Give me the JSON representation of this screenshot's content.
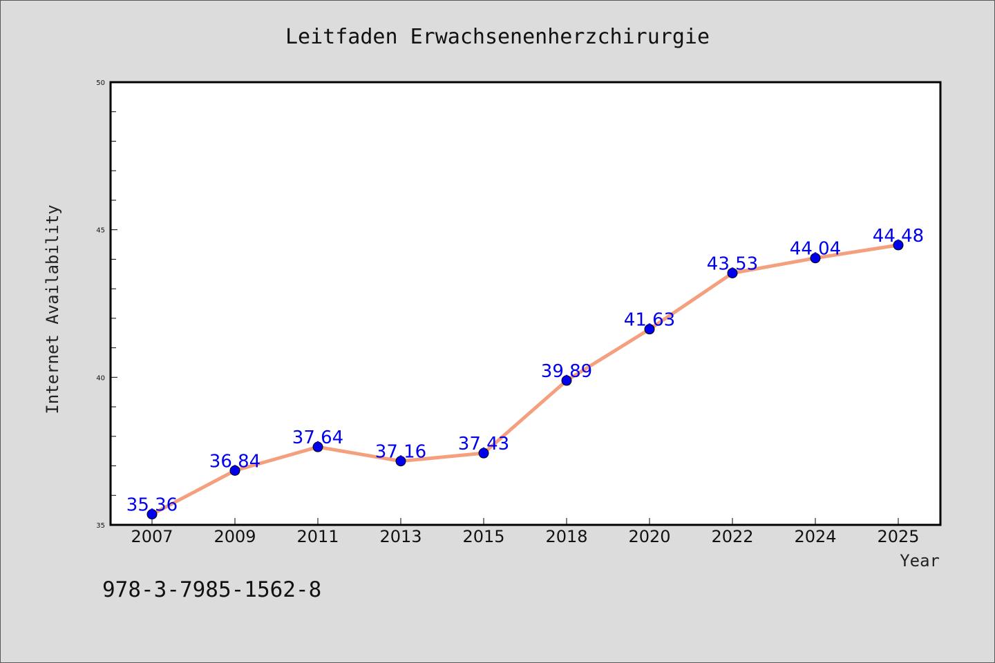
{
  "footer": {
    "isbn": "978-3-7985-1562-8"
  },
  "chart_data": {
    "type": "line",
    "title": "Leitfaden Erwachsenenherzchirurgie",
    "xlabel": "Year",
    "ylabel": "Internet Availability",
    "categories": [
      "2007",
      "2009",
      "2011",
      "2013",
      "2015",
      "2018",
      "2020",
      "2022",
      "2024",
      "2025"
    ],
    "series": [
      {
        "values": [
          35.36,
          36.84,
          37.64,
          37.16,
          37.43,
          39.89,
          41.63,
          43.53,
          44.04,
          44.48
        ],
        "line_color": "#f4a07e",
        "marker_color": "#0000ee",
        "label_color": "#0000ee"
      }
    ],
    "ylim": [
      35,
      50
    ],
    "yticks_major": [
      35,
      40,
      45,
      50
    ],
    "grid": false,
    "legend": "none"
  }
}
